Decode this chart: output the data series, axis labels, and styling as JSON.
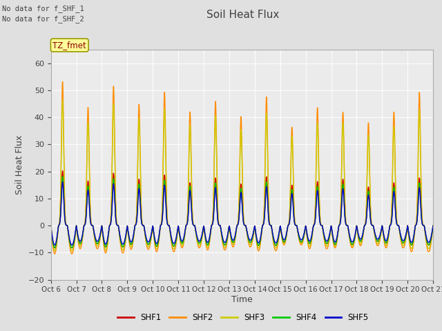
{
  "title": "Soil Heat Flux",
  "ylabel": "Soil Heat Flux",
  "xlabel": "Time",
  "no_data_text_1": "No data for f_SHF_1",
  "no_data_text_2": "No data for f_SHF_2",
  "tz_label": "TZ_fmet",
  "ylim": [
    -20,
    65
  ],
  "yticks": [
    -20,
    -10,
    0,
    10,
    20,
    30,
    40,
    50,
    60
  ],
  "num_days": 15,
  "xtick_labels": [
    "Oct 6",
    "Oct 7",
    "Oct 8",
    "Oct 9",
    "Oct 10",
    "Oct 11",
    "Oct 12",
    "Oct 13",
    "Oct 14",
    "Oct 15",
    "Oct 16",
    "Oct 17",
    "Oct 18",
    "Oct 19",
    "Oct 20",
    "Oct 21"
  ],
  "legend_entries": [
    "SHF1",
    "SHF2",
    "SHF3",
    "SHF4",
    "SHF5"
  ],
  "colors": {
    "SHF1": "#CC0000",
    "SHF2": "#FF8C00",
    "SHF3": "#CCCC00",
    "SHF4": "#00CC00",
    "SHF5": "#0000CC"
  },
  "line_width": 1.0,
  "bg_color": "#E0E0E0",
  "plot_bg_color": "#EBEBEB",
  "text_color": "#404040",
  "tz_box_color": "#FFFF99",
  "tz_box_border": "#999900",
  "amplitudes": {
    "SHF1": 22,
    "SHF2": 56,
    "SHF3": 50,
    "SHF4": 20,
    "SHF5": 18
  },
  "night_depths": {
    "SHF1": 9,
    "SHF2": 11,
    "SHF3": 10,
    "SHF4": 9,
    "SHF5": 8
  },
  "day_variations": {
    "SHF1": [
      0.92,
      0.75,
      0.88,
      0.78,
      0.85,
      0.72,
      0.8,
      0.7,
      0.82,
      0.68,
      0.74,
      0.78,
      0.65,
      0.72,
      0.8
    ],
    "SHF2": [
      0.95,
      0.78,
      0.92,
      0.8,
      0.88,
      0.75,
      0.82,
      0.72,
      0.85,
      0.65,
      0.78,
      0.75,
      0.68,
      0.75,
      0.88
    ],
    "SHF3": [
      0.93,
      0.76,
      0.9,
      0.79,
      0.86,
      0.74,
      0.81,
      0.71,
      0.83,
      0.66,
      0.76,
      0.76,
      0.67,
      0.73,
      0.85
    ],
    "SHF4": [
      0.91,
      0.74,
      0.87,
      0.77,
      0.84,
      0.73,
      0.79,
      0.69,
      0.81,
      0.67,
      0.73,
      0.77,
      0.64,
      0.71,
      0.79
    ],
    "SHF5": [
      0.9,
      0.73,
      0.86,
      0.76,
      0.83,
      0.72,
      0.78,
      0.68,
      0.8,
      0.66,
      0.72,
      0.76,
      0.63,
      0.7,
      0.78
    ]
  }
}
